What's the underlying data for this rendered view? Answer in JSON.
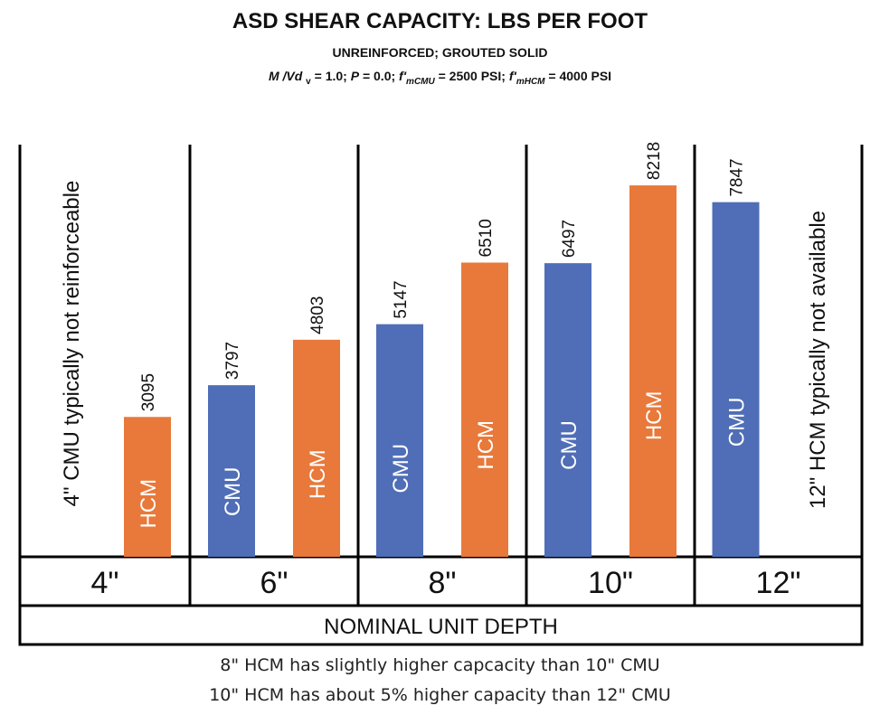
{
  "header": {
    "title": "ASD SHEAR CAPACITY: LBS PER FOOT",
    "subtitle": "UNREINFORCED; GROUTED SOLID",
    "params": {
      "m_vd": "M /Vd",
      "m_vd_sub": "v",
      "m_vd_val": "= 1.0;",
      "p": "P",
      "p_val": "= 0.0;",
      "fm": "f'",
      "fm_cmu_sub": "mCMU",
      "fm_cmu_val": "= 2500 PSI;",
      "fm_hcm_sub": "mHCM",
      "fm_hcm_val": "= 4000 PSI"
    }
  },
  "chart_data": {
    "type": "bar",
    "title": "ASD SHEAR CAPACITY: LBS PER FOOT",
    "xlabel": "NOMINAL UNIT DEPTH",
    "ylabel": "",
    "ylim": [
      0,
      10000
    ],
    "categories": [
      "4\"",
      "6\"",
      "8\"",
      "10\"",
      "12\""
    ],
    "series": [
      {
        "name": "CMU",
        "color": "#4f6eb7",
        "values": [
          null,
          3797,
          5147,
          6497,
          7847
        ]
      },
      {
        "name": "HCM",
        "color": "#e8793a",
        "values": [
          3095,
          4803,
          6510,
          8218,
          null
        ]
      }
    ],
    "annotations": [
      {
        "category": "4\"",
        "text": "4\" CMU typically not reinforceable"
      },
      {
        "category": "12\"",
        "text": "12\" HCM typically not available"
      }
    ]
  },
  "footnotes": [
    "8\" HCM has slightly higher capcacity than 10\" CMU",
    "10\" HCM has about 5% higher capacity than 12\" CMU"
  ]
}
